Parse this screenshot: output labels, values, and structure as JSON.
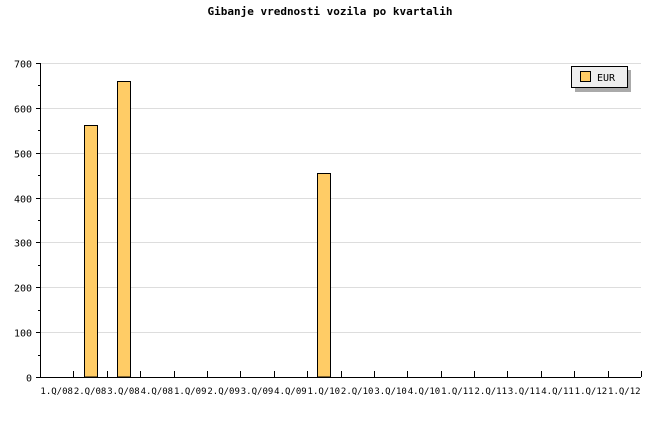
{
  "chart_data": {
    "type": "bar",
    "title": "Gibanje vrednosti vozila po kvartalih",
    "xlabel": "",
    "ylabel": "",
    "categories": [
      "1.Q/08",
      "2.Q/08",
      "3.Q/08",
      "4.Q/08",
      "1.Q/09",
      "2.Q/09",
      "3.Q/09",
      "4.Q/09",
      "1.Q/10",
      "2.Q/10",
      "3.Q/10",
      "4.Q/10",
      "1.Q/11",
      "2.Q/11",
      "3.Q/11",
      "4.Q/11",
      "1.Q/12",
      "1.Q/12"
    ],
    "series": [
      {
        "name": "EUR",
        "color": "#ffcc66",
        "values": [
          0,
          562,
          660,
          0,
          0,
          0,
          0,
          0,
          455,
          0,
          0,
          0,
          0,
          0,
          0,
          0,
          0,
          0
        ]
      }
    ],
    "ylim": [
      0,
      700
    ],
    "yticks": [
      0,
      100,
      200,
      300,
      400,
      500,
      600,
      700
    ],
    "grid": true,
    "legend": "top-right"
  }
}
